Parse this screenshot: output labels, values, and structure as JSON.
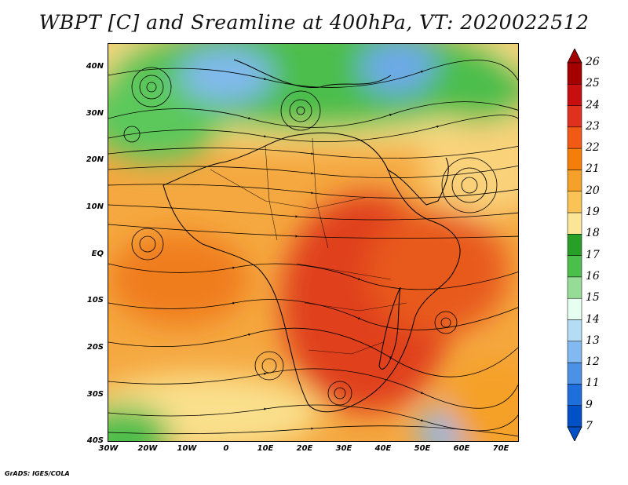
{
  "title": "WBPT [C] and Sreamline at 400hPa, VT: 2020022512",
  "credit": "GrADS: IGES/COLA",
  "map": {
    "extent": {
      "lon_min": -30,
      "lon_max": 75,
      "lat_min": -40,
      "lat_max": 45
    },
    "lat_ticks": [
      {
        "value": 40,
        "label": "40N"
      },
      {
        "value": 30,
        "label": "30N"
      },
      {
        "value": 20,
        "label": "20N"
      },
      {
        "value": 10,
        "label": "10N"
      },
      {
        "value": 0,
        "label": "EQ"
      },
      {
        "value": -10,
        "label": "10S"
      },
      {
        "value": -20,
        "label": "20S"
      },
      {
        "value": -30,
        "label": "30S"
      },
      {
        "value": -40,
        "label": "40S"
      }
    ],
    "lon_ticks": [
      {
        "value": -30,
        "label": "30W"
      },
      {
        "value": -20,
        "label": "20W"
      },
      {
        "value": -10,
        "label": "10W"
      },
      {
        "value": 0,
        "label": "0"
      },
      {
        "value": 10,
        "label": "10E"
      },
      {
        "value": 20,
        "label": "20E"
      },
      {
        "value": 30,
        "label": "30E"
      },
      {
        "value": 40,
        "label": "40E"
      },
      {
        "value": 50,
        "label": "50E"
      },
      {
        "value": 60,
        "label": "60E"
      },
      {
        "value": 70,
        "label": "70E"
      }
    ]
  },
  "colorbar": {
    "levels": [
      "26",
      "25",
      "24",
      "23",
      "22",
      "21",
      "20",
      "19",
      "18",
      "17",
      "16",
      "15",
      "14",
      "13",
      "12",
      "11",
      "9",
      "7"
    ],
    "colors": [
      "#a50000",
      "#c80f0f",
      "#e0301e",
      "#f05a14",
      "#f57d0a",
      "#f5a028",
      "#fac355",
      "#fae696",
      "#28a028",
      "#4bbe4b",
      "#96dc96",
      "#e6fff0",
      "#b4dcf5",
      "#82b9f0",
      "#4b91e6",
      "#1e6edc",
      "#0050c8"
    ]
  }
}
